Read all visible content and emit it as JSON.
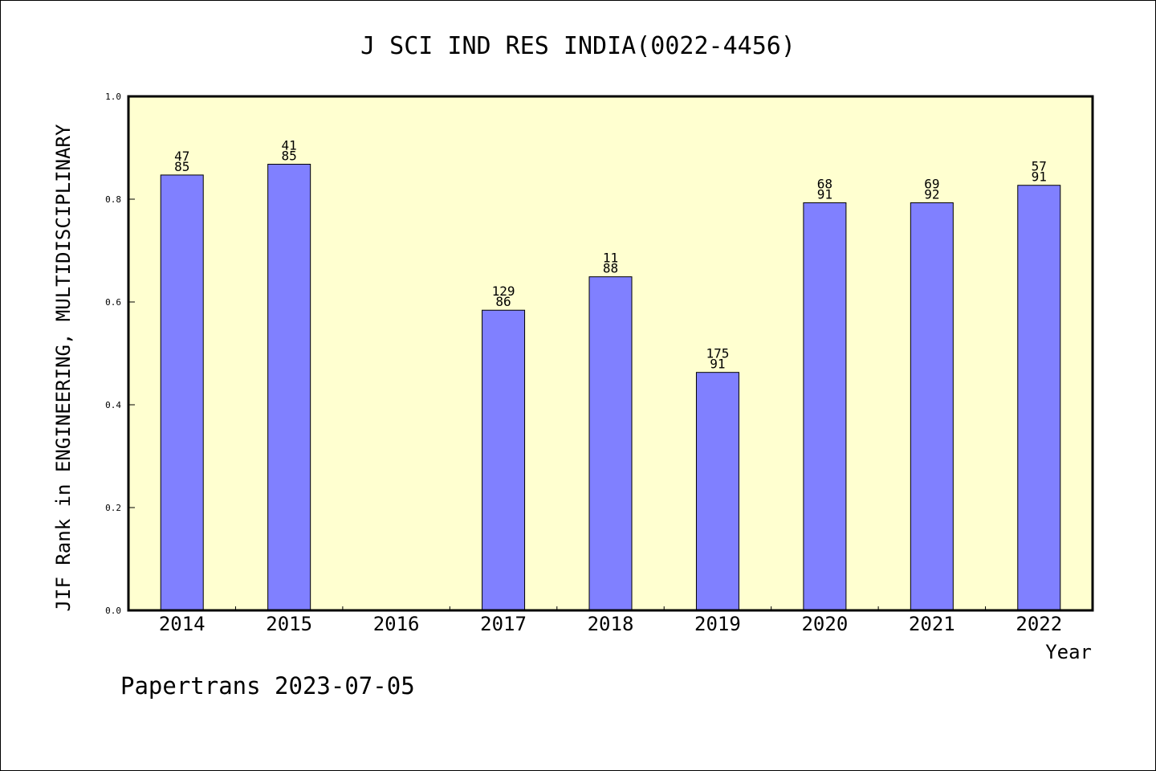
{
  "chart_data": {
    "type": "bar",
    "title": "J SCI IND RES INDIA(0022-4456)",
    "xlabel": "Year",
    "ylabel": "JIF Rank in ENGINEERING, MULTIDISCIPLINARY",
    "ylim": [
      0,
      1.0
    ],
    "yticks": [
      "0.0",
      "0.2",
      "0.4",
      "0.6",
      "0.8",
      "1.0"
    ],
    "categories": [
      "2014",
      "2015",
      "2016",
      "2017",
      "2018",
      "2019",
      "2020",
      "2021",
      "2022"
    ],
    "values": [
      0.847,
      0.868,
      null,
      0.584,
      0.649,
      0.463,
      0.793,
      0.793,
      0.827
    ],
    "bar_labels": [
      {
        "rank": "47",
        "total": "85"
      },
      {
        "rank": "41",
        "total": "85"
      },
      null,
      {
        "rank": "129",
        "total": "86"
      },
      {
        "rank": "11",
        "total": "88"
      },
      {
        "rank": "175",
        "total": "91"
      },
      {
        "rank": "68",
        "total": "91"
      },
      {
        "rank": "69",
        "total": "92"
      },
      {
        "rank": "57",
        "total": "91"
      }
    ],
    "grid": false,
    "plot_background": "#ffffd0",
    "bar_color": "#8080ff"
  },
  "footer": "Papertrans 2023-07-05"
}
